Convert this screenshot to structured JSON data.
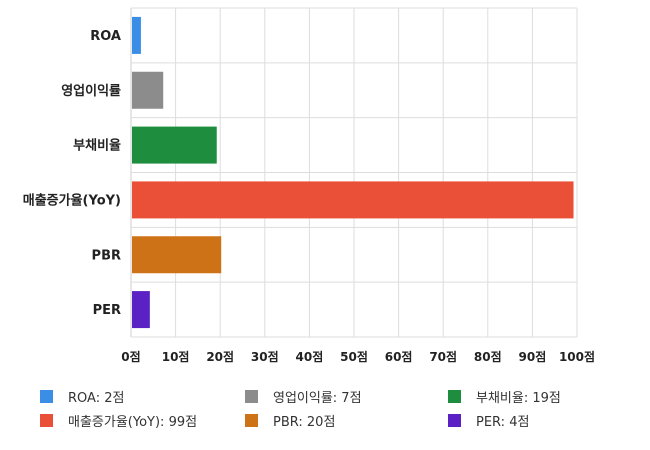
{
  "chart_data": {
    "type": "bar",
    "orientation": "horizontal",
    "categories": [
      "ROA",
      "영업이익률",
      "부채비율",
      "매출증가율(YoY)",
      "PBR",
      "PER"
    ],
    "values": [
      2,
      7,
      19,
      99,
      20,
      4
    ],
    "colors": [
      "#3a8ee6",
      "#8c8c8c",
      "#1e8e3e",
      "#ea4f37",
      "#ce7218",
      "#5b21c4"
    ],
    "x_ticks": [
      "0점",
      "10점",
      "20점",
      "30점",
      "40점",
      "50점",
      "60점",
      "70점",
      "80점",
      "90점",
      "100점"
    ],
    "xlim": [
      0,
      100
    ],
    "grid": true,
    "legend_position": "bottom",
    "legend": [
      {
        "label": "ROA: 2점",
        "color": "#3a8ee6"
      },
      {
        "label": "영업이익률: 7점",
        "color": "#8c8c8c"
      },
      {
        "label": "부채비율: 19점",
        "color": "#1e8e3e"
      },
      {
        "label": "매출증가율(YoY): 99점",
        "color": "#ea4f37"
      },
      {
        "label": "PBR: 20점",
        "color": "#ce7218"
      },
      {
        "label": "PER: 4점",
        "color": "#5b21c4"
      }
    ]
  }
}
